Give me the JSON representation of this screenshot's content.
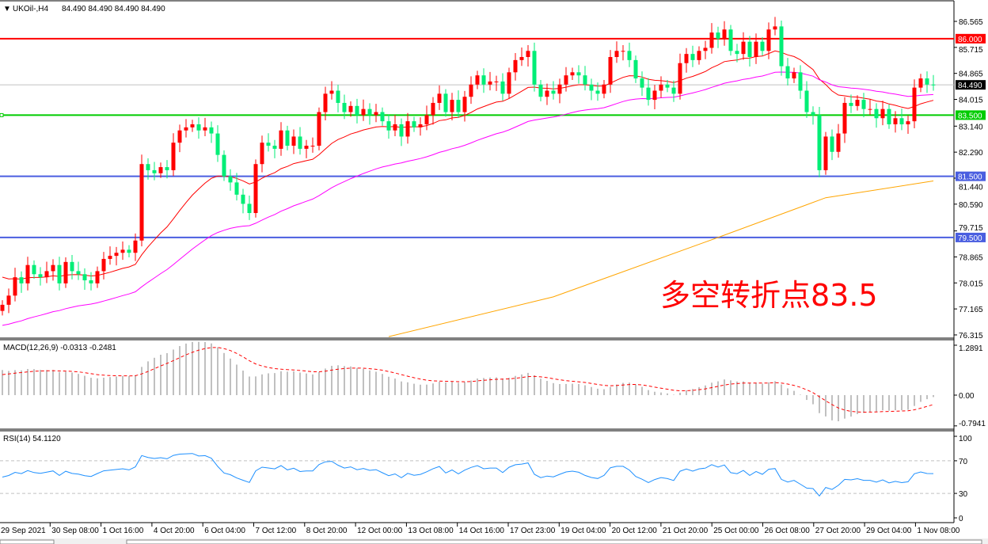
{
  "header": {
    "symbol": "UKOil-,H4",
    "ohlc": "84.490 84.490 84.490 84.490",
    "menu_icon": "triangle-down-icon"
  },
  "annotation": "多空转折点83.5",
  "colors": {
    "bull": "#ff0000",
    "bear": "#00ee76",
    "ma_fast": "#ff0000",
    "ma_mid": "#ff00ff",
    "ma_slow": "#ffa500",
    "macd_hist": "#c0c0c0",
    "macd_signal": "#ff0000",
    "rsi": "#1e90ff"
  },
  "chart_data": [
    {
      "type": "candlestick",
      "title": "UKOil-,H4",
      "price_axis": {
        "range": [
          76.315,
          86.565
        ],
        "ticks": [
          "86.565",
          "85.715",
          "84.865",
          "84.015",
          "83.140",
          "82.290",
          "81.440",
          "80.590",
          "79.715",
          "78.865",
          "78.015",
          "77.165",
          "76.315"
        ]
      },
      "time_axis": {
        "ticks": [
          "29 Sep 2021",
          "30 Sep 08:00",
          "1 Oct 16:00",
          "4 Oct 20:00",
          "6 Oct 04:00",
          "7 Oct 12:00",
          "8 Oct 20:00",
          "12 Oct 00:00",
          "13 Oct 08:00",
          "14 Oct 16:00",
          "17 Oct 23:00",
          "19 Oct 04:00",
          "20 Oct 12:00",
          "21 Oct 20:00",
          "25 Oct 00:00",
          "26 Oct 08:00",
          "27 Oct 20:00",
          "29 Oct 04:00",
          "1 Nov 08:00"
        ]
      },
      "close": [
        77.3,
        77.6,
        78.2,
        78.0,
        78.6,
        78.3,
        78.2,
        78.4,
        78.6,
        78.0,
        78.7,
        78.4,
        78.3,
        78.1,
        78.0,
        78.4,
        78.8,
        78.9,
        79.0,
        79.1,
        79.0,
        79.4,
        81.9,
        81.7,
        81.6,
        81.8,
        81.7,
        82.6,
        83.0,
        83.1,
        83.2,
        83.0,
        83.1,
        82.9,
        82.2,
        81.5,
        81.3,
        80.9,
        80.6,
        80.3,
        81.9,
        82.6,
        82.5,
        82.4,
        83.0,
        82.5,
        82.8,
        82.4,
        82.5,
        82.5,
        83.6,
        84.2,
        84.3,
        83.9,
        83.6,
        83.8,
        83.5,
        83.7,
        83.5,
        83.6,
        83.3,
        83.0,
        83.2,
        82.8,
        83.3,
        83.1,
        83.2,
        83.5,
        83.9,
        84.2,
        83.6,
        84.0,
        83.6,
        84.1,
        84.5,
        84.8,
        84.5,
        84.6,
        84.6,
        84.2,
        84.9,
        85.3,
        85.4,
        85.6,
        84.5,
        84.1,
        84.3,
        84.2,
        84.5,
        84.8,
        84.9,
        84.8,
        84.5,
        84.3,
        84.2,
        84.5,
        85.4,
        85.6,
        85.6,
        85.3,
        84.7,
        84.4,
        84.0,
        84.3,
        84.5,
        84.4,
        84.2,
        85.2,
        85.5,
        85.3,
        85.6,
        85.7,
        86.2,
        86.0,
        86.3,
        85.6,
        85.5,
        85.9,
        85.4,
        85.9,
        85.6,
        86.3,
        86.4,
        85.1,
        84.7,
        84.9,
        84.3,
        83.6,
        83.5,
        81.7,
        82.8,
        82.3,
        82.9,
        83.9,
        83.8,
        84.0,
        83.7,
        83.7,
        83.4,
        83.7,
        83.2,
        83.4,
        83.2,
        83.3,
        84.4,
        84.7,
        84.5,
        84.49
      ],
      "ma_slow_points": [
        [
          61,
          76.26
        ],
        [
          87,
          77.56
        ],
        [
          113,
          79.5
        ],
        [
          130,
          80.8
        ],
        [
          147,
          81.35
        ]
      ],
      "levels": [
        {
          "label": "86.000",
          "value": 86.0,
          "color": "#ff0000"
        },
        {
          "label": "84.490",
          "value": 84.49,
          "color": "#000000",
          "line": "#c0c0c0"
        },
        {
          "label": "83.500",
          "value": 83.5,
          "color": "#00cc00"
        },
        {
          "label": "81.500",
          "value": 81.5,
          "color": "#4a5ee0"
        },
        {
          "label": "79.500",
          "value": 79.5,
          "color": "#4a5ee0"
        }
      ]
    },
    {
      "type": "macd",
      "label": "MACD(12,26,9) -0.0313 -0.2481",
      "range": [
        -0.7941,
        1.2891
      ],
      "ticks": [
        "1.2891",
        "0.00",
        "-0.7941"
      ]
    },
    {
      "type": "rsi",
      "label": "RSI(14) 54.1120",
      "range": [
        0,
        100
      ],
      "ticks": [
        "100",
        "70",
        "30",
        "0"
      ]
    }
  ]
}
